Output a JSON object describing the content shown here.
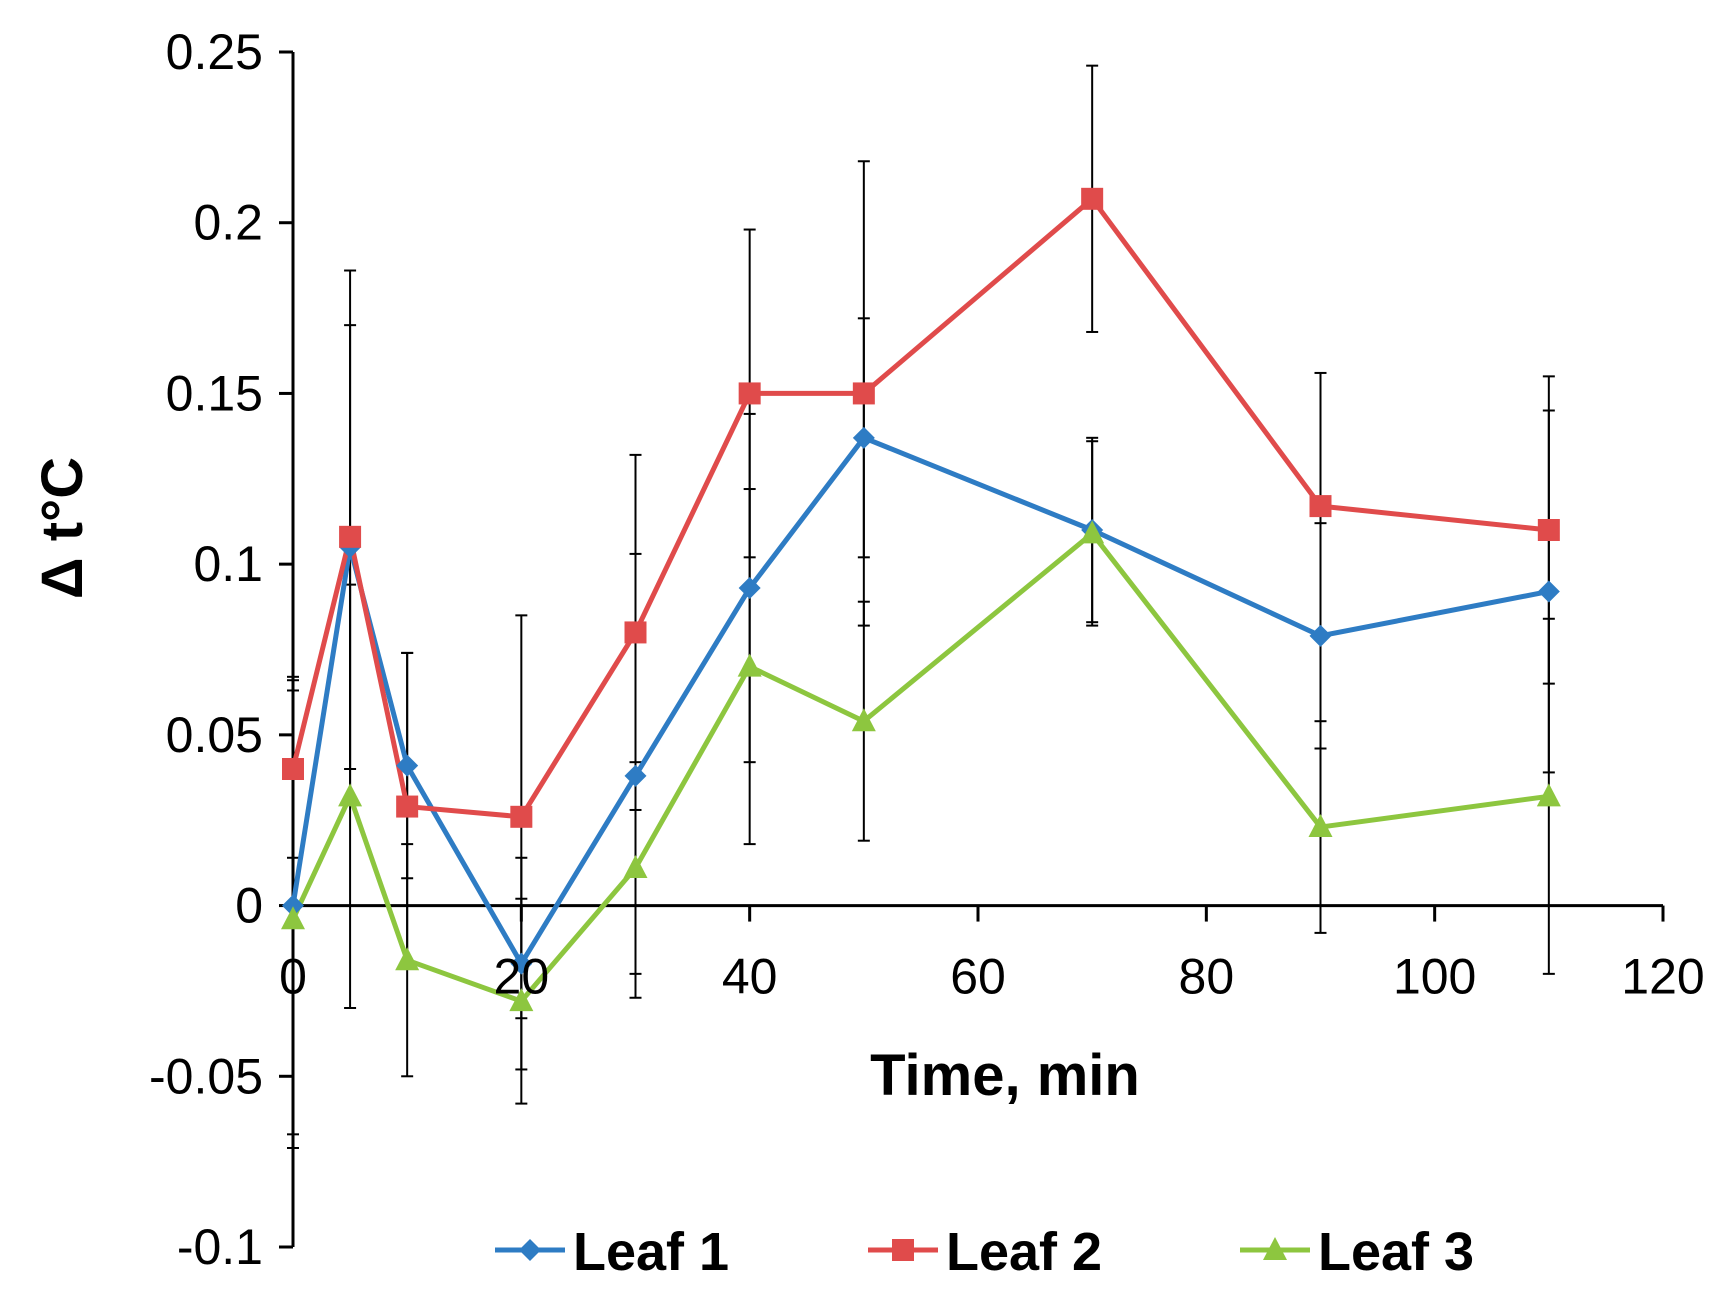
{
  "chart_data": {
    "type": "line",
    "xlabel": "Time, min",
    "ylabel": "Δ t°C",
    "xlim": [
      0,
      120
    ],
    "ylim": [
      -0.1,
      0.25
    ],
    "x_ticks": [
      0,
      20,
      40,
      60,
      80,
      100,
      120
    ],
    "x_tick_labels": [
      "0",
      "20",
      "40",
      "60",
      "80",
      "100",
      "120"
    ],
    "y_ticks": [
      -0.1,
      -0.05,
      0,
      0.05,
      0.1,
      0.15,
      0.2,
      0.25
    ],
    "y_tick_labels": [
      "-0.1",
      "-0.05",
      "0",
      "0.05",
      "0.1",
      "0.15",
      "0.2",
      "0.25"
    ],
    "grid": false,
    "legend_position": "bottom",
    "x": [
      0,
      5,
      10,
      20,
      30,
      40,
      50,
      70,
      90,
      110
    ],
    "series": [
      {
        "name": "Leaf 1",
        "color": "#2E7CC4",
        "marker": "diamond",
        "values": [
          0.0,
          0.105,
          0.041,
          -0.017,
          0.038,
          0.093,
          0.137,
          0.11,
          0.079,
          0.092
        ],
        "errors": [
          0.067,
          0.065,
          0.033,
          0.031,
          0.065,
          0.051,
          0.035,
          0.027,
          0.033,
          0.053
        ]
      },
      {
        "name": "Leaf 2",
        "color": "#E04B4B",
        "marker": "square",
        "values": [
          0.04,
          0.108,
          0.029,
          0.026,
          0.08,
          0.15,
          0.15,
          0.207,
          0.117,
          0.11
        ],
        "errors": [
          0.026,
          0.078,
          0.045,
          0.059,
          0.052,
          0.048,
          0.068,
          0.039,
          0.039,
          0.045
        ]
      },
      {
        "name": "Leaf 3",
        "color": "#8DC63F",
        "marker": "triangle",
        "values": [
          -0.004,
          0.032,
          -0.016,
          -0.028,
          0.011,
          0.07,
          0.054,
          0.109,
          0.023,
          0.032
        ],
        "errors": [
          0.067,
          0.062,
          0.034,
          0.03,
          0.031,
          0.052,
          0.035,
          0.027,
          0.031,
          0.052
        ]
      }
    ]
  }
}
